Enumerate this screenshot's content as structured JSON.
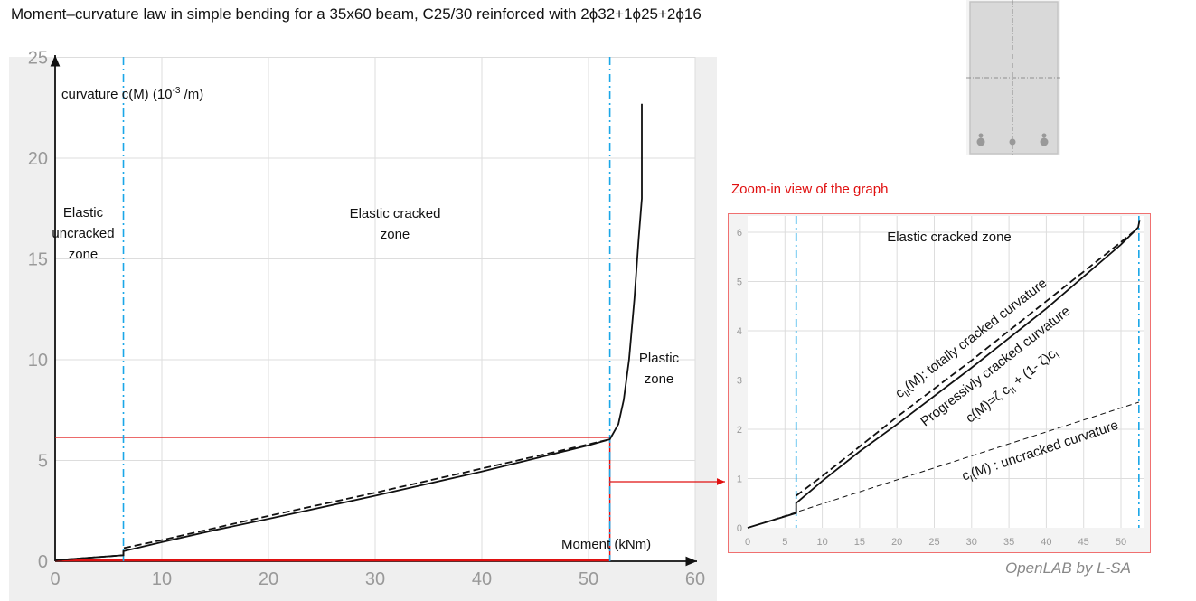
{
  "title": "Moment–curvature law in simple bending for a 35x60 beam, C25/30 reinforced with 2ϕ32+1ϕ25+2ϕ16",
  "zoom_caption": "Zoom-in view of the graph",
  "credit": "OpenLAB by L-SA",
  "colors": {
    "curve": "#111111",
    "zone_line": "#1aa7e8",
    "highlight": "#e01010",
    "grid": "#dddddd",
    "tick_label": "#999999"
  },
  "section_icon": "beam-cross-section-with-5-rebars",
  "chart_data": [
    {
      "type": "line",
      "title": "",
      "xlabel": "Moment (kNm)",
      "ylabel": "curvature c(M) (10-3 /m)",
      "ylabel_main": "curvature c(M) (10",
      "ylabel_sup": "-3",
      "ylabel_end": " /m)",
      "xlim": [
        0,
        60
      ],
      "ylim": [
        0,
        25
      ],
      "xticks": [
        "0",
        "10",
        "20",
        "30",
        "40",
        "50",
        "60"
      ],
      "yticks": [
        "0",
        "5",
        "10",
        "15",
        "20",
        "25"
      ],
      "grid": true,
      "zone_boundaries": [
        6.4,
        52
      ],
      "annotations": {
        "uncracked": [
          "Elastic",
          "uncracked",
          "zone"
        ],
        "cracked": [
          "Elastic cracked",
          "zone"
        ],
        "plastic": [
          "Plastic",
          "zone"
        ]
      },
      "highlight_box": {
        "x": [
          0,
          52
        ],
        "y": [
          0,
          6.15
        ]
      },
      "series": [
        {
          "style": "solid",
          "x": [
            0,
            6.4,
            6.4,
            10,
            15,
            20,
            30,
            40,
            50,
            52,
            52.8,
            53.3,
            53.8,
            54.3,
            54.7,
            55,
            55,
            55
          ],
          "y": [
            0.05,
            0.3,
            0.5,
            0.95,
            1.55,
            2.1,
            3.25,
            4.45,
            5.75,
            6.05,
            6.8,
            8,
            10,
            13,
            16,
            18,
            21,
            22.7
          ]
        },
        {
          "style": "dashed",
          "x": [
            0,
            6.4,
            6.4,
            10,
            20,
            30,
            40,
            50,
            52
          ],
          "y": [
            0.05,
            0.3,
            0.65,
            1.05,
            2.25,
            3.4,
            4.6,
            5.8,
            6.05
          ]
        }
      ]
    },
    {
      "type": "line",
      "title": "",
      "xlim": [
        0,
        53
      ],
      "ylim": [
        0,
        6.2
      ],
      "xticks": [
        "0",
        "5",
        "10",
        "15",
        "20",
        "25",
        "30",
        "35",
        "40",
        "45",
        "50"
      ],
      "yticks": [
        "0",
        "1",
        "2",
        "3",
        "4",
        "5",
        "6"
      ],
      "grid": true,
      "zone_boundaries": [
        6.5,
        52.4
      ],
      "annotations": {
        "zone": "Elastic cracked zone",
        "totally": "cII(M): totally cracked curvature",
        "totally_parts": [
          "c",
          "II",
          "(M): totally cracked curvature"
        ],
        "progressive": "Progressivly cracked curvature",
        "formula": "c(M)=ζ cII + (1- ζ)cI",
        "formula_parts": [
          "c(M)=ζ c",
          "II",
          " + (1- ζ)c",
          "I"
        ],
        "uncracked": "cI(M) : uncracked curvature",
        "uncracked_parts": [
          "c",
          "I",
          "(M) : uncracked curvature"
        ]
      },
      "series": [
        {
          "name": "Progressivly cracked curvature",
          "style": "solid",
          "x": [
            0,
            6.5,
            6.5,
            10,
            15,
            20,
            30,
            40,
            50,
            52,
            52.3,
            52.5
          ],
          "y": [
            0,
            0.3,
            0.5,
            0.95,
            1.55,
            2.1,
            3.25,
            4.45,
            5.75,
            6.05,
            6.1,
            6.25
          ]
        },
        {
          "name": "cII(M): totally cracked curvature",
          "style": "dashed",
          "x": [
            6.5,
            10,
            20,
            30,
            40,
            50,
            52
          ],
          "y": [
            0.65,
            1.05,
            2.25,
            3.4,
            4.6,
            5.8,
            6.05
          ]
        },
        {
          "name": "cI(M) : uncracked curvature",
          "style": "dashed-thin",
          "x": [
            0,
            52.4
          ],
          "y": [
            0,
            2.55
          ]
        }
      ]
    }
  ]
}
